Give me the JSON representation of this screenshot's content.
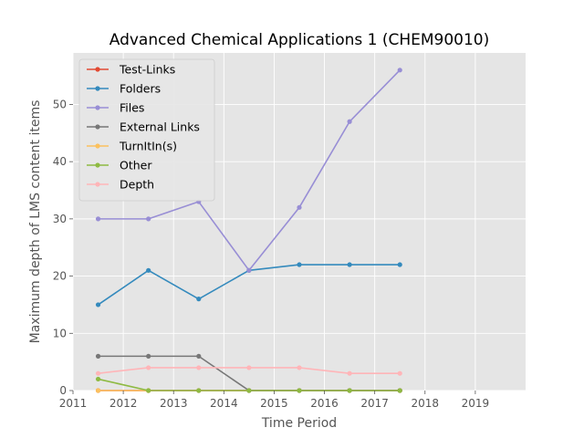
{
  "chart_data": {
    "type": "line",
    "title": "Advanced Chemical Applications 1 (CHEM90010)",
    "xlabel": "Time Period",
    "ylabel": "Maximum depth of LMS content items",
    "xlim": [
      2011,
      2020
    ],
    "ylim": [
      0,
      59
    ],
    "x_ticks": [
      2011,
      2012,
      2013,
      2014,
      2015,
      2016,
      2017,
      2018,
      2019
    ],
    "y_ticks": [
      0,
      10,
      20,
      30,
      40,
      50
    ],
    "grid": true,
    "legend_position": "upper-left",
    "x": [
      2011.5,
      2012.5,
      2013.5,
      2014.5,
      2015.5,
      2016.5,
      2017.5
    ],
    "series": [
      {
        "name": "Test-Links",
        "color": "#E24A33",
        "values": [
          0,
          0,
          0,
          0,
          0,
          0,
          0
        ]
      },
      {
        "name": "Folders",
        "color": "#348ABD",
        "values": [
          15,
          21,
          16,
          21,
          22,
          22,
          22
        ]
      },
      {
        "name": "Files",
        "color": "#988ED5",
        "values": [
          30,
          30,
          33,
          21,
          32,
          47,
          56
        ]
      },
      {
        "name": "External Links",
        "color": "#777777",
        "values": [
          6,
          6,
          6,
          0,
          0,
          0,
          0
        ]
      },
      {
        "name": "TurnItIn(s)",
        "color": "#FBC15E",
        "values": [
          0,
          0,
          null,
          null,
          null,
          null,
          null
        ]
      },
      {
        "name": "Other",
        "color": "#8EBA42",
        "values": [
          2,
          0,
          0,
          0,
          0,
          0,
          0
        ]
      },
      {
        "name": "Depth",
        "color": "#FFB5B8",
        "values": [
          3,
          4,
          4,
          4,
          4,
          3,
          3
        ]
      }
    ]
  }
}
